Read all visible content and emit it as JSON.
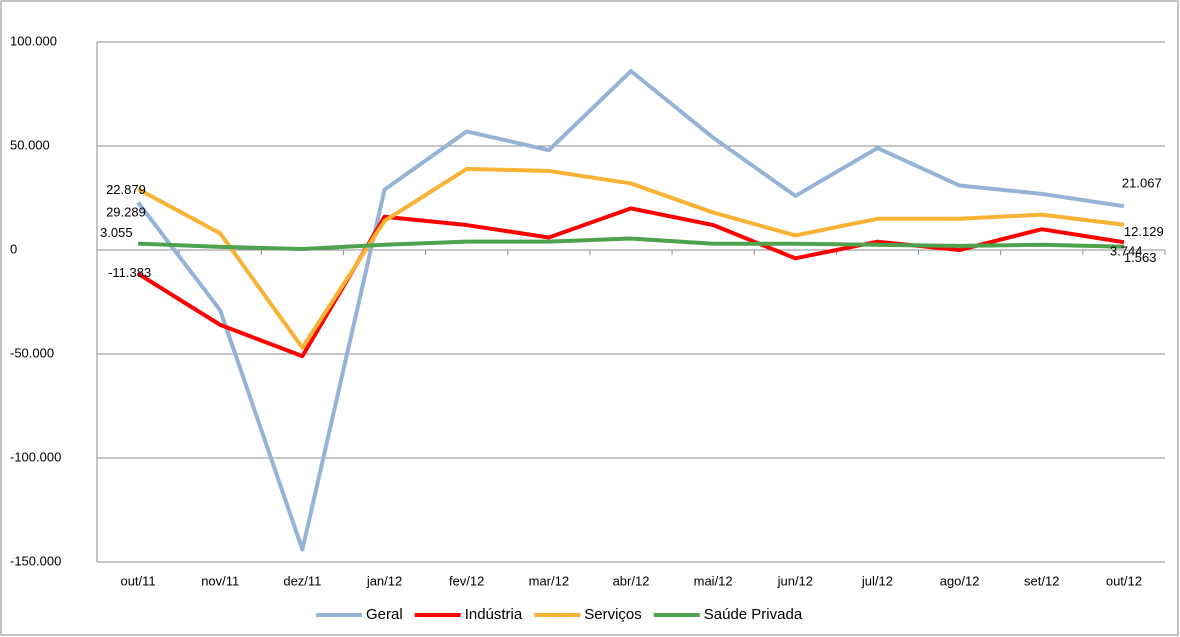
{
  "chart_data": {
    "type": "line",
    "categories": [
      "out/11",
      "nov/11",
      "dez/11",
      "jan/12",
      "fev/12",
      "mar/12",
      "abr/12",
      "mai/12",
      "jun/12",
      "jul/12",
      "ago/12",
      "set/12",
      "out/12"
    ],
    "series": [
      {
        "name": "Geral",
        "color": "#95b3d7",
        "values": [
          22879,
          -29000,
          -144000,
          29000,
          57000,
          48000,
          86000,
          54000,
          26000,
          49000,
          31000,
          27000,
          21067
        ],
        "value_labels": [
          "22.879",
          null,
          null,
          null,
          null,
          null,
          null,
          null,
          null,
          null,
          null,
          null,
          "21.067"
        ]
      },
      {
        "name": "Indústria",
        "color": "#ff0000",
        "values": [
          -11383,
          -36000,
          -51000,
          16000,
          12000,
          6000,
          20000,
          12000,
          -4000,
          4000,
          0,
          10000,
          3744
        ],
        "value_labels": [
          "-11.383",
          null,
          null,
          null,
          null,
          null,
          null,
          null,
          null,
          null,
          null,
          null,
          "3.744"
        ]
      },
      {
        "name": "Serviços",
        "color": "#f9b233",
        "values": [
          29289,
          8000,
          -47000,
          14000,
          39000,
          38000,
          32000,
          18000,
          7000,
          15000,
          15000,
          17000,
          12129
        ],
        "value_labels": [
          "29.289",
          null,
          null,
          null,
          null,
          null,
          null,
          null,
          null,
          null,
          null,
          null,
          "12.129"
        ]
      },
      {
        "name": "Saúde Privada",
        "color": "#4ea24e",
        "values": [
          3055,
          1500,
          500,
          2500,
          4000,
          4000,
          5500,
          3000,
          3000,
          2500,
          2000,
          2500,
          1563
        ],
        "value_labels": [
          "3.055",
          null,
          null,
          null,
          null,
          null,
          null,
          null,
          null,
          null,
          null,
          null,
          "1.563"
        ]
      }
    ],
    "ylim": [
      -150000,
      100000
    ],
    "yticks": [
      {
        "value": -150000,
        "label": "-150.000"
      },
      {
        "value": -100000,
        "label": "-100.000"
      },
      {
        "value": -50000,
        "label": "-50.000"
      },
      0,
      {
        "value": 50000,
        "label": "50.000"
      },
      {
        "value": 100000,
        "label": "100.000"
      }
    ],
    "grid": true,
    "legend": "bottom"
  }
}
